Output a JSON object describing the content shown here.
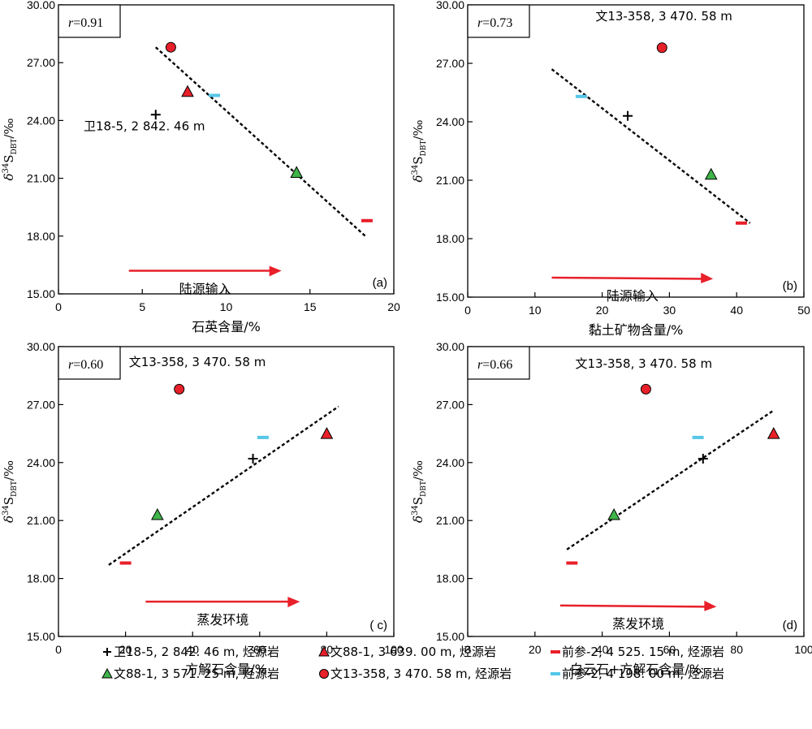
{
  "colors": {
    "red": "#e8202a",
    "green": "#3fb449",
    "cyan": "#55c6e8",
    "black": "#000000",
    "arrow": "#e8202a"
  },
  "legend": [
    {
      "marker": "plus",
      "color": "#000000",
      "label": "卫18-5, 2 842. 46 m, 烃源岩"
    },
    {
      "marker": "triangle",
      "color": "#e8202a",
      "label": "文88-1, 3 639. 00 m, 烃源岩"
    },
    {
      "marker": "dash",
      "color": "#e8202a",
      "label": "前参-2, 4 525. 15 m, 烃源岩"
    },
    {
      "marker": "triangle",
      "color": "#3fb449",
      "label": "文88-1, 3 571. 25 m, 烃源岩"
    },
    {
      "marker": "circle",
      "color": "#e8202a",
      "label": "文13-358, 3 470. 58 m, 烃源岩"
    },
    {
      "marker": "dash",
      "color": "#55c6e8",
      "label": "前参-2, 4 198. 00 m, 烃源岩"
    }
  ],
  "chart_data": [
    {
      "type": "scatter",
      "panel": "(a)",
      "r_prefix": "r",
      "r_value": "=0.91",
      "xlabel": "石英含量/%",
      "ylabel_main": "δ",
      "ylabel_sup": "34",
      "ylabel_s": "S",
      "ylabel_sub": "DBT",
      "ylabel_unit": "/‰",
      "xlim": [
        0,
        20
      ],
      "xticks": [
        "0",
        "5",
        "10",
        "15",
        "20"
      ],
      "ylim": [
        15,
        30
      ],
      "yticks": [
        "15.00",
        "18.00",
        "21.00",
        "24.00",
        "27.00",
        "30.00"
      ],
      "points": [
        {
          "series": "卫18-5, 2 842. 46 m, 烃源岩",
          "marker": "plus",
          "color": "#000000",
          "x": 5.8,
          "y": 24.3
        },
        {
          "series": "文88-1, 3 639. 00 m, 烃源岩",
          "marker": "triangle",
          "color": "#e8202a",
          "x": 7.7,
          "y": 25.5
        },
        {
          "series": "前参-2, 4 525. 15 m, 烃源岩",
          "marker": "dash",
          "color": "#e8202a",
          "x": 18.4,
          "y": 18.8
        },
        {
          "series": "文88-1, 3 571. 25 m, 烃源岩",
          "marker": "triangle",
          "color": "#3fb449",
          "x": 14.2,
          "y": 21.3
        },
        {
          "series": "文13-358, 3 470. 58 m, 烃源岩",
          "marker": "circle",
          "color": "#e8202a",
          "x": 6.7,
          "y": 27.8
        },
        {
          "series": "前参-2, 4 198. 00 m, 烃源岩",
          "marker": "dash",
          "color": "#55c6e8",
          "x": 9.3,
          "y": 25.3
        }
      ],
      "trend": [
        [
          5.8,
          27.8
        ],
        [
          18.3,
          18.0
        ]
      ],
      "annotation": {
        "text": "卫18-5, 2 842. 46 m",
        "x": 1.5,
        "y": 23.5
      },
      "arrow": {
        "label": "陆源输入",
        "x1": 4.2,
        "x2": 13.3,
        "y": 16.2
      }
    },
    {
      "type": "scatter",
      "panel": "(b)",
      "r_prefix": "r",
      "r_value": "=0.73",
      "xlabel": "黏土矿物含量/%",
      "ylabel_main": "δ",
      "ylabel_sup": "34",
      "ylabel_s": "S",
      "ylabel_sub": "DBT",
      "ylabel_unit": "/‰",
      "xlim": [
        0,
        50
      ],
      "xticks": [
        "0",
        "10",
        "20",
        "30",
        "40",
        "50"
      ],
      "ylim": [
        15,
        30
      ],
      "yticks": [
        "15.00",
        "18.00",
        "21.00",
        "24.00",
        "27.00",
        "30.00"
      ],
      "points": [
        {
          "series": "卫18-5, 2 842. 46 m, 烃源岩",
          "marker": "plus",
          "color": "#000000",
          "x": 23.8,
          "y": 24.3
        },
        {
          "series": "文88-1, 3 639. 00 m, 烃源岩",
          "marker": "triangle",
          "color": "#e8202a",
          "x": null,
          "y": null
        },
        {
          "series": "前参-2, 4 525. 15 m, 烃源岩",
          "marker": "dash",
          "color": "#e8202a",
          "x": 40.7,
          "y": 18.8
        },
        {
          "series": "文88-1, 3 571. 25 m, 烃源岩",
          "marker": "triangle",
          "color": "#3fb449",
          "x": 36.2,
          "y": 21.3
        },
        {
          "series": "文13-358, 3 470. 58 m, 烃源岩",
          "marker": "circle",
          "color": "#e8202a",
          "x": 28.9,
          "y": 27.8
        },
        {
          "series": "前参-2, 4 198. 00 m, 烃源岩",
          "marker": "dash",
          "color": "#55c6e8",
          "x": 16.9,
          "y": 25.3
        }
      ],
      "trend": [
        [
          12.5,
          26.7
        ],
        [
          42.0,
          18.8
        ]
      ],
      "annotation": {
        "text": "文13-358, 3 470. 58 m",
        "x": 19.0,
        "y": 29.2
      },
      "arrow": {
        "label": "陆源输入",
        "x1": 12.5,
        "x2": 36.5,
        "y": 16.0
      }
    },
    {
      "type": "scatter",
      "panel": "( c)",
      "r_prefix": "r",
      "r_value": "=0.60",
      "xlabel": "方解石含量/%",
      "ylabel_main": "δ",
      "ylabel_sup": "34",
      "ylabel_s": "S",
      "ylabel_sub": "DBT",
      "ylabel_unit": "/‰",
      "xlim": [
        0,
        100
      ],
      "xticks": [
        "0",
        "20",
        "40",
        "60",
        "80",
        "100"
      ],
      "ylim": [
        15,
        30
      ],
      "yticks": [
        "15.00",
        "18.00",
        "21.00",
        "24.00",
        "27.00",
        "30.00"
      ],
      "points": [
        {
          "series": "卫18-5, 2 842. 46 m, 烃源岩",
          "marker": "plus",
          "color": "#000000",
          "x": 58.0,
          "y": 24.2
        },
        {
          "series": "文88-1, 3 639. 00 m, 烃源岩",
          "marker": "triangle",
          "color": "#e8202a",
          "x": 80.0,
          "y": 25.5
        },
        {
          "series": "前参-2, 4 525. 15 m, 烃源岩",
          "marker": "dash",
          "color": "#e8202a",
          "x": 20.0,
          "y": 18.8
        },
        {
          "series": "文88-1, 3 571. 25 m, 烃源岩",
          "marker": "triangle",
          "color": "#3fb449",
          "x": 29.5,
          "y": 21.3
        },
        {
          "series": "文13-358, 3 470. 58 m, 烃源岩",
          "marker": "circle",
          "color": "#e8202a",
          "x": 36.0,
          "y": 27.8
        },
        {
          "series": "前参-2, 4 198. 00 m, 烃源岩",
          "marker": "dash",
          "color": "#55c6e8",
          "x": 61.0,
          "y": 25.3
        }
      ],
      "trend": [
        [
          15.0,
          18.7
        ],
        [
          83.5,
          26.9
        ]
      ],
      "annotation": {
        "text": "文13-358, 3 470. 58 m",
        "x": 21.0,
        "y": 29.0
      },
      "arrow": {
        "label": "蒸发环境",
        "x1": 26.0,
        "x2": 72.0,
        "y": 16.8
      }
    },
    {
      "type": "scatter",
      "panel": "(d)",
      "r_prefix": "r",
      "r_value": "=0.66",
      "xlabel": "白云石+方解石含量/%",
      "ylabel_main": "δ",
      "ylabel_sup": "34",
      "ylabel_s": "S",
      "ylabel_sub": "DBT",
      "ylabel_unit": "/‰",
      "xlim": [
        0,
        100
      ],
      "xticks": [
        "0",
        "20",
        "40",
        "60",
        "80",
        "100"
      ],
      "ylim": [
        15,
        30
      ],
      "yticks": [
        "15.00",
        "18.00",
        "21.00",
        "24.00",
        "27.00",
        "30.00"
      ],
      "points": [
        {
          "series": "卫18-5, 2 842. 46 m, 烃源岩",
          "marker": "plus",
          "color": "#000000",
          "x": 70.0,
          "y": 24.2
        },
        {
          "series": "文88-1, 3 639. 00 m, 烃源岩",
          "marker": "triangle",
          "color": "#e8202a",
          "x": 91.0,
          "y": 25.5
        },
        {
          "series": "前参-2, 4 525. 15 m, 烃源岩",
          "marker": "dash",
          "color": "#e8202a",
          "x": 31.0,
          "y": 18.8
        },
        {
          "series": "文88-1, 3 571. 25 m, 烃源岩",
          "marker": "triangle",
          "color": "#3fb449",
          "x": 43.5,
          "y": 21.3
        },
        {
          "series": "文13-358, 3 470. 58 m, 烃源岩",
          "marker": "circle",
          "color": "#e8202a",
          "x": 53.0,
          "y": 27.8
        },
        {
          "series": "前参-2, 4 198. 00 m, 烃源岩",
          "marker": "dash",
          "color": "#55c6e8",
          "x": 68.5,
          "y": 25.3
        }
      ],
      "trend": [
        [
          29.5,
          19.5
        ],
        [
          91.0,
          26.7
        ]
      ],
      "annotation": {
        "text": "文13-358, 3 470. 58 m",
        "x": 32.0,
        "y": 28.9
      },
      "arrow": {
        "label": "蒸发环境",
        "x1": 27.5,
        "x2": 74.0,
        "y": 16.6
      }
    }
  ]
}
